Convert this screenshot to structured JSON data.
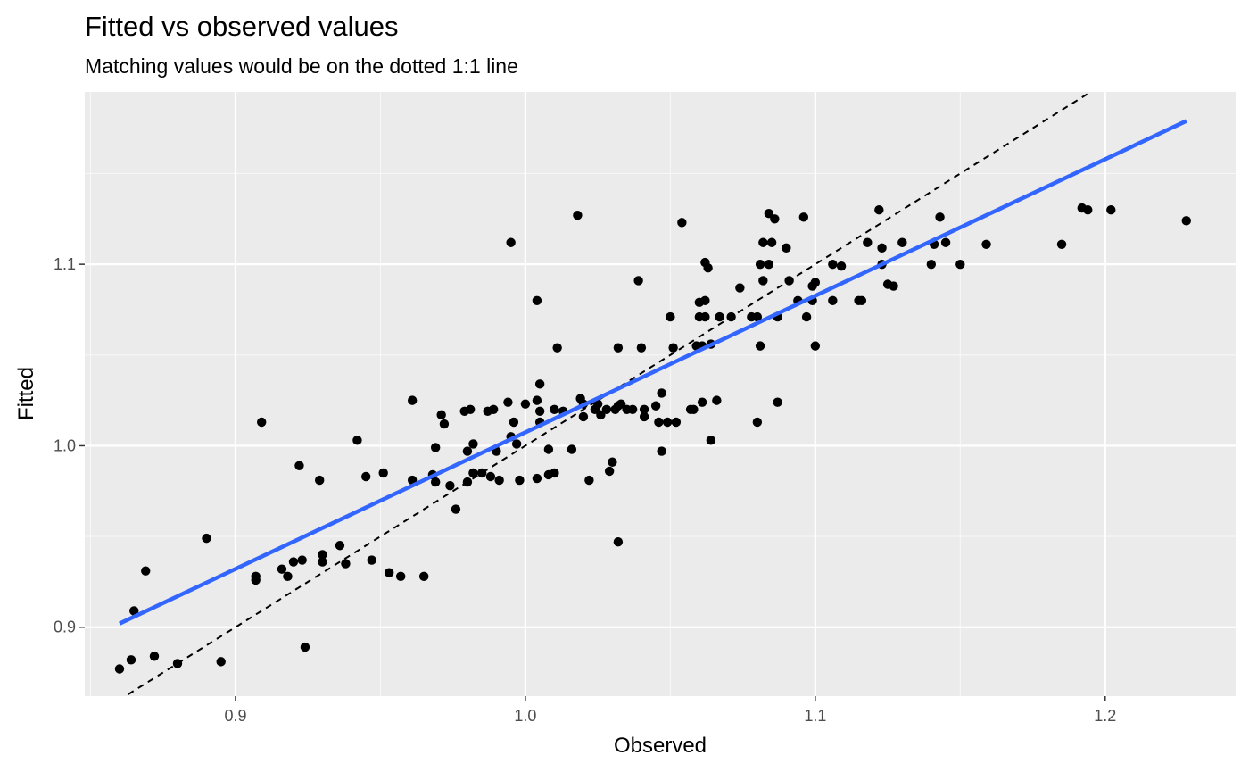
{
  "chart_data": {
    "type": "scatter",
    "title": "Fitted vs observed values",
    "subtitle": "Matching values would be on the dotted 1:1 line",
    "xlabel": "Observed",
    "ylabel": "Fitted",
    "xlim": [
      0.848,
      1.245
    ],
    "ylim": [
      0.862,
      1.195
    ],
    "x_major_ticks": [
      0.9,
      1.0,
      1.1,
      1.2
    ],
    "x_tick_labels": [
      "0.9",
      "1.0",
      "1.1",
      "1.2"
    ],
    "x_minor_ticks": [
      0.85,
      0.95,
      1.05,
      1.15
    ],
    "y_major_ticks": [
      0.9,
      1.0,
      1.1
    ],
    "y_tick_labels": [
      "0.9",
      "1.0",
      "1.1"
    ],
    "y_minor_ticks": [
      0.95,
      1.05,
      1.15
    ],
    "grid": true,
    "legend": "none",
    "colors": {
      "panel_background": "#ebebeb",
      "grid_major": "#ffffff",
      "grid_minor": "#f7f7f7",
      "points": "#000000",
      "fit_line": "#3366ff",
      "identity_line": "#000000",
      "tick_color": "#333333"
    },
    "identity_line": {
      "style": "dashed",
      "slope": 1,
      "intercept": 0
    },
    "fit_line": {
      "x": [
        0.86,
        1.228
      ],
      "y": [
        0.902,
        1.179
      ]
    },
    "points": [
      [
        0.86,
        0.877
      ],
      [
        0.864,
        0.882
      ],
      [
        0.865,
        0.909
      ],
      [
        0.869,
        0.931
      ],
      [
        0.872,
        0.884
      ],
      [
        0.88,
        0.88
      ],
      [
        0.89,
        0.949
      ],
      [
        0.895,
        0.881
      ],
      [
        0.907,
        0.926
      ],
      [
        0.907,
        0.928
      ],
      [
        0.909,
        1.013
      ],
      [
        0.916,
        0.932
      ],
      [
        0.918,
        0.928
      ],
      [
        0.92,
        0.936
      ],
      [
        0.922,
        0.989
      ],
      [
        0.923,
        0.937
      ],
      [
        0.924,
        0.889
      ],
      [
        0.929,
        0.981
      ],
      [
        0.93,
        0.936
      ],
      [
        0.93,
        0.94
      ],
      [
        0.936,
        0.945
      ],
      [
        0.938,
        0.935
      ],
      [
        0.942,
        1.003
      ],
      [
        0.945,
        0.983
      ],
      [
        0.947,
        0.937
      ],
      [
        0.951,
        0.985
      ],
      [
        0.953,
        0.93
      ],
      [
        0.957,
        0.928
      ],
      [
        0.961,
        1.025
      ],
      [
        0.961,
        0.981
      ],
      [
        0.965,
        0.928
      ],
      [
        0.968,
        0.984
      ],
      [
        0.969,
        0.999
      ],
      [
        0.969,
        0.98
      ],
      [
        0.971,
        1.017
      ],
      [
        0.972,
        1.012
      ],
      [
        0.974,
        0.978
      ],
      [
        0.976,
        0.965
      ],
      [
        0.979,
        1.019
      ],
      [
        0.98,
        0.98
      ],
      [
        0.98,
        0.997
      ],
      [
        0.981,
        1.02
      ],
      [
        0.982,
        1.001
      ],
      [
        0.982,
        0.985
      ],
      [
        0.985,
        0.985
      ],
      [
        0.987,
        1.019
      ],
      [
        0.988,
        0.983
      ],
      [
        0.989,
        1.02
      ],
      [
        0.99,
        0.997
      ],
      [
        0.991,
        0.981
      ],
      [
        0.994,
        1.024
      ],
      [
        0.995,
        1.005
      ],
      [
        0.995,
        1.112
      ],
      [
        0.996,
        1.013
      ],
      [
        0.997,
        1.001
      ],
      [
        0.998,
        0.981
      ],
      [
        1.0,
        1.023
      ],
      [
        1.004,
        1.08
      ],
      [
        1.004,
        1.025
      ],
      [
        1.004,
        0.982
      ],
      [
        1.005,
        1.034
      ],
      [
        1.005,
        1.019
      ],
      [
        1.005,
        1.013
      ],
      [
        1.008,
        0.984
      ],
      [
        1.008,
        0.998
      ],
      [
        1.01,
        1.02
      ],
      [
        1.01,
        0.985
      ],
      [
        1.011,
        1.054
      ],
      [
        1.013,
        1.019
      ],
      [
        1.016,
        0.998
      ],
      [
        1.018,
        1.127
      ],
      [
        1.019,
        1.026
      ],
      [
        1.02,
        1.023
      ],
      [
        1.02,
        1.016
      ],
      [
        1.022,
        0.981
      ],
      [
        1.024,
        1.02
      ],
      [
        1.025,
        1.023
      ],
      [
        1.026,
        1.017
      ],
      [
        1.028,
        1.02
      ],
      [
        1.029,
        0.986
      ],
      [
        1.03,
        0.991
      ],
      [
        1.031,
        1.02
      ],
      [
        1.032,
        1.054
      ],
      [
        1.032,
        1.022
      ],
      [
        1.032,
        0.947
      ],
      [
        1.033,
        1.023
      ],
      [
        1.035,
        1.02
      ],
      [
        1.037,
        1.02
      ],
      [
        1.039,
        1.091
      ],
      [
        1.04,
        1.054
      ],
      [
        1.041,
        1.02
      ],
      [
        1.041,
        1.016
      ],
      [
        1.045,
        1.022
      ],
      [
        1.046,
        1.013
      ],
      [
        1.047,
        1.029
      ],
      [
        1.047,
        0.997
      ],
      [
        1.049,
        1.013
      ],
      [
        1.05,
        1.071
      ],
      [
        1.051,
        1.054
      ],
      [
        1.052,
        1.013
      ],
      [
        1.054,
        1.123
      ],
      [
        1.057,
        1.02
      ],
      [
        1.058,
        1.02
      ],
      [
        1.059,
        1.055
      ],
      [
        1.06,
        1.071
      ],
      [
        1.06,
        1.079
      ],
      [
        1.061,
        1.055
      ],
      [
        1.061,
        1.024
      ],
      [
        1.062,
        1.101
      ],
      [
        1.062,
        1.071
      ],
      [
        1.062,
        1.08
      ],
      [
        1.063,
        1.098
      ],
      [
        1.064,
        1.056
      ],
      [
        1.064,
        1.003
      ],
      [
        1.066,
        1.025
      ],
      [
        1.067,
        1.071
      ],
      [
        1.071,
        1.071
      ],
      [
        1.074,
        1.087
      ],
      [
        1.078,
        1.071
      ],
      [
        1.08,
        1.071
      ],
      [
        1.08,
        1.013
      ],
      [
        1.081,
        1.055
      ],
      [
        1.081,
        1.1
      ],
      [
        1.082,
        1.091
      ],
      [
        1.082,
        1.112
      ],
      [
        1.084,
        1.128
      ],
      [
        1.084,
        1.1
      ],
      [
        1.085,
        1.112
      ],
      [
        1.086,
        1.125
      ],
      [
        1.087,
        1.071
      ],
      [
        1.087,
        1.024
      ],
      [
        1.09,
        1.109
      ],
      [
        1.091,
        1.091
      ],
      [
        1.094,
        1.08
      ],
      [
        1.096,
        1.126
      ],
      [
        1.097,
        1.071
      ],
      [
        1.099,
        1.08
      ],
      [
        1.099,
        1.088
      ],
      [
        1.1,
        1.09
      ],
      [
        1.1,
        1.055
      ],
      [
        1.106,
        1.1
      ],
      [
        1.106,
        1.08
      ],
      [
        1.109,
        1.099
      ],
      [
        1.115,
        1.08
      ],
      [
        1.116,
        1.08
      ],
      [
        1.118,
        1.112
      ],
      [
        1.122,
        1.13
      ],
      [
        1.123,
        1.109
      ],
      [
        1.123,
        1.1
      ],
      [
        1.125,
        1.089
      ],
      [
        1.127,
        1.088
      ],
      [
        1.13,
        1.112
      ],
      [
        1.14,
        1.1
      ],
      [
        1.141,
        1.111
      ],
      [
        1.143,
        1.126
      ],
      [
        1.145,
        1.112
      ],
      [
        1.15,
        1.1
      ],
      [
        1.159,
        1.111
      ],
      [
        1.185,
        1.111
      ],
      [
        1.192,
        1.131
      ],
      [
        1.194,
        1.13
      ],
      [
        1.202,
        1.13
      ],
      [
        1.228,
        1.124
      ]
    ]
  }
}
